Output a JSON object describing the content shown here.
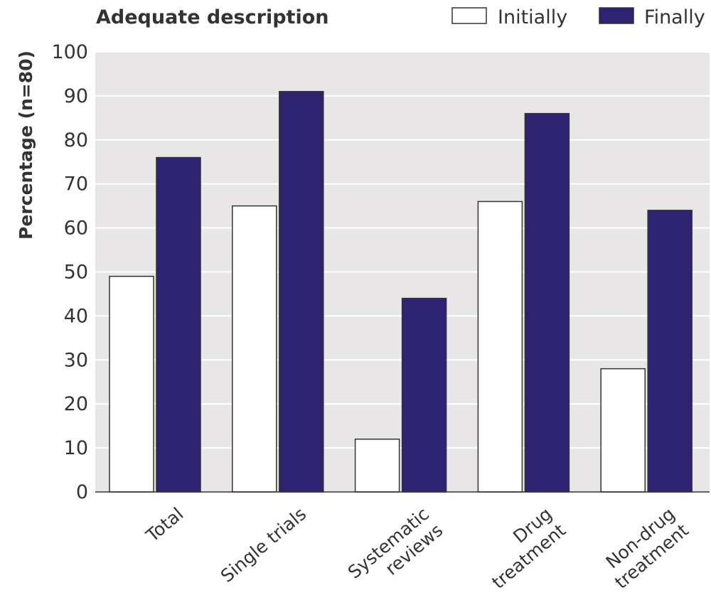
{
  "chart_data": {
    "type": "bar",
    "title": "Adequate description",
    "ylabel": "Percentage (n=80)",
    "xlabel": "",
    "ylim": [
      0,
      100
    ],
    "yticks": [
      0,
      10,
      20,
      30,
      40,
      50,
      60,
      70,
      80,
      90,
      100
    ],
    "grid": true,
    "legend_position": "top-right",
    "categories": [
      [
        "Total"
      ],
      [
        "Single trials"
      ],
      [
        "Systematic",
        "reviews"
      ],
      [
        "Drug",
        "treatment"
      ],
      [
        "Non-drug",
        "treatment"
      ]
    ],
    "series": [
      {
        "name": "Initially",
        "color": "#ffffff",
        "values": [
          49,
          65,
          12,
          66,
          28
        ]
      },
      {
        "name": "Finally",
        "color": "#2e2370",
        "values": [
          76,
          91,
          44,
          86,
          64
        ]
      }
    ],
    "colors": {
      "plot_background": "#e8e6e7",
      "gridline": "#ffffff",
      "text": "#333333"
    }
  }
}
